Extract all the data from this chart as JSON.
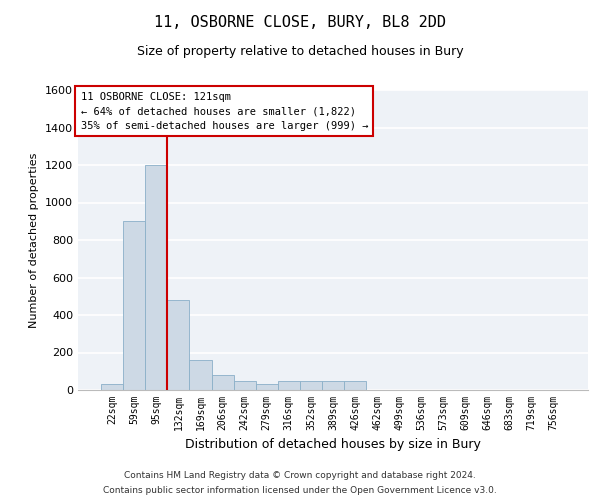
{
  "title": "11, OSBORNE CLOSE, BURY, BL8 2DD",
  "subtitle": "Size of property relative to detached houses in Bury",
  "xlabel": "Distribution of detached houses by size in Bury",
  "ylabel": "Number of detached properties",
  "categories": [
    "22sqm",
    "59sqm",
    "95sqm",
    "132sqm",
    "169sqm",
    "206sqm",
    "242sqm",
    "279sqm",
    "316sqm",
    "352sqm",
    "389sqm",
    "426sqm",
    "462sqm",
    "499sqm",
    "536sqm",
    "573sqm",
    "609sqm",
    "646sqm",
    "683sqm",
    "719sqm",
    "756sqm"
  ],
  "values": [
    30,
    900,
    1200,
    480,
    160,
    80,
    50,
    30,
    50,
    50,
    50,
    50,
    0,
    0,
    0,
    0,
    0,
    0,
    0,
    0,
    0
  ],
  "bar_color": "#cdd9e5",
  "bar_edgecolor": "#8aafc8",
  "redline_color": "#cc0000",
  "annotation_box_edgecolor": "#cc0000",
  "annotation_line1": "11 OSBORNE CLOSE: 121sqm",
  "annotation_line2": "← 64% of detached houses are smaller (1,822)",
  "annotation_line3": "35% of semi-detached houses are larger (999) →",
  "ylim": [
    0,
    1600
  ],
  "yticks": [
    0,
    200,
    400,
    600,
    800,
    1000,
    1200,
    1400,
    1600
  ],
  "footer1": "Contains HM Land Registry data © Crown copyright and database right 2024.",
  "footer2": "Contains public sector information licensed under the Open Government Licence v3.0.",
  "bg_color": "#eef2f7",
  "grid_color": "#ffffff",
  "title_fontsize": 11,
  "subtitle_fontsize": 9,
  "xlabel_fontsize": 9,
  "ylabel_fontsize": 8,
  "tick_fontsize": 7,
  "footer_fontsize": 6.5
}
